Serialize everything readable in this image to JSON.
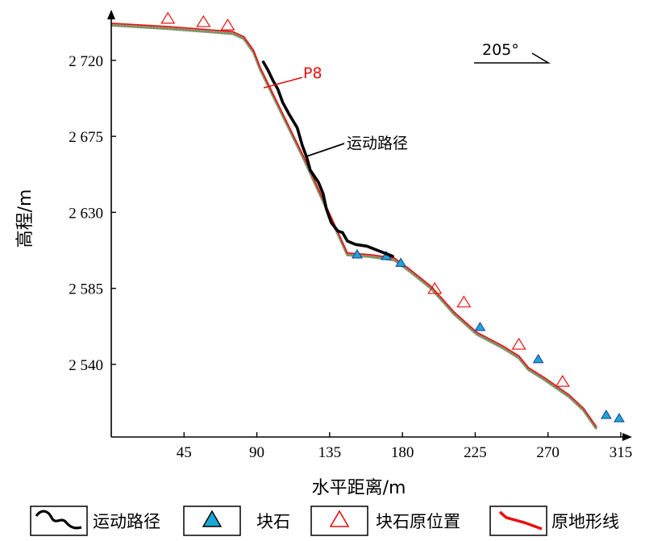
{
  "chart_data": {
    "type": "line",
    "xlabel": "水平距离/m",
    "ylabel": "高程/m",
    "xlim": [
      0,
      322
    ],
    "ylim": [
      2497,
      2750
    ],
    "xticks": [
      45,
      90,
      135,
      180,
      225,
      270,
      315
    ],
    "xtick_labels": [
      "45",
      "90",
      "135",
      "180",
      "225",
      "270",
      "315"
    ],
    "yticks": [
      2540,
      2585,
      2630,
      2675,
      2720
    ],
    "ytick_labels": [
      "2 540",
      "2 585",
      "2 630",
      "2 675",
      "2 720"
    ],
    "direction_label": "205°",
    "point_label": "P8",
    "path_annotation": "运动路径",
    "series": [
      {
        "name": "原地形线",
        "color": "#e8100f",
        "points": [
          [
            0,
            2742
          ],
          [
            35,
            2740
          ],
          [
            75,
            2737
          ],
          [
            82,
            2734
          ],
          [
            88,
            2726
          ],
          [
            92,
            2716
          ],
          [
            120,
            2661
          ],
          [
            146,
            2606
          ],
          [
            160,
            2605
          ],
          [
            175,
            2603
          ],
          [
            185,
            2596
          ],
          [
            198,
            2586
          ],
          [
            212,
            2571
          ],
          [
            226,
            2559
          ],
          [
            242,
            2551
          ],
          [
            252,
            2545
          ],
          [
            258,
            2538
          ],
          [
            268,
            2532
          ],
          [
            283,
            2522
          ],
          [
            292,
            2514
          ],
          [
            300,
            2503
          ]
        ]
      },
      {
        "name": "运动路径",
        "color": "#000000",
        "points": [
          [
            94,
            2719
          ],
          [
            97,
            2714
          ],
          [
            100,
            2708
          ],
          [
            103,
            2703
          ],
          [
            106,
            2695
          ],
          [
            110,
            2688
          ],
          [
            115,
            2680
          ],
          [
            118,
            2670
          ],
          [
            121,
            2662
          ],
          [
            123,
            2655
          ],
          [
            128,
            2648
          ],
          [
            131,
            2641
          ],
          [
            133,
            2632
          ],
          [
            136,
            2624
          ],
          [
            140,
            2619
          ],
          [
            143,
            2618
          ],
          [
            146,
            2613
          ],
          [
            151,
            2611
          ],
          [
            158,
            2610
          ],
          [
            166,
            2607
          ],
          [
            174,
            2604
          ]
        ]
      },
      {
        "name": "块石",
        "color": "#1aa7d6",
        "points": [
          [
            152,
            2603
          ],
          [
            170,
            2602
          ],
          [
            179,
            2598
          ],
          [
            228,
            2560
          ],
          [
            264,
            2541
          ],
          [
            306,
            2508
          ],
          [
            314,
            2506
          ]
        ]
      },
      {
        "name": "块石原位置",
        "color": "#e8100f",
        "points": [
          [
            35,
            2742
          ],
          [
            57,
            2740
          ],
          [
            72,
            2738
          ],
          [
            200,
            2582
          ],
          [
            218,
            2574
          ],
          [
            252,
            2549
          ],
          [
            279,
            2527
          ]
        ]
      }
    ],
    "grid": false,
    "legend_position": "bottom"
  },
  "legend": {
    "items": [
      {
        "label": "运动路径",
        "icon": "black-curve-icon"
      },
      {
        "label": "块石",
        "icon": "blue-filled-triangle-icon"
      },
      {
        "label": "块石原位置",
        "icon": "red-outline-triangle-icon"
      },
      {
        "label": "原地形线",
        "icon": "red-line-icon"
      }
    ]
  }
}
